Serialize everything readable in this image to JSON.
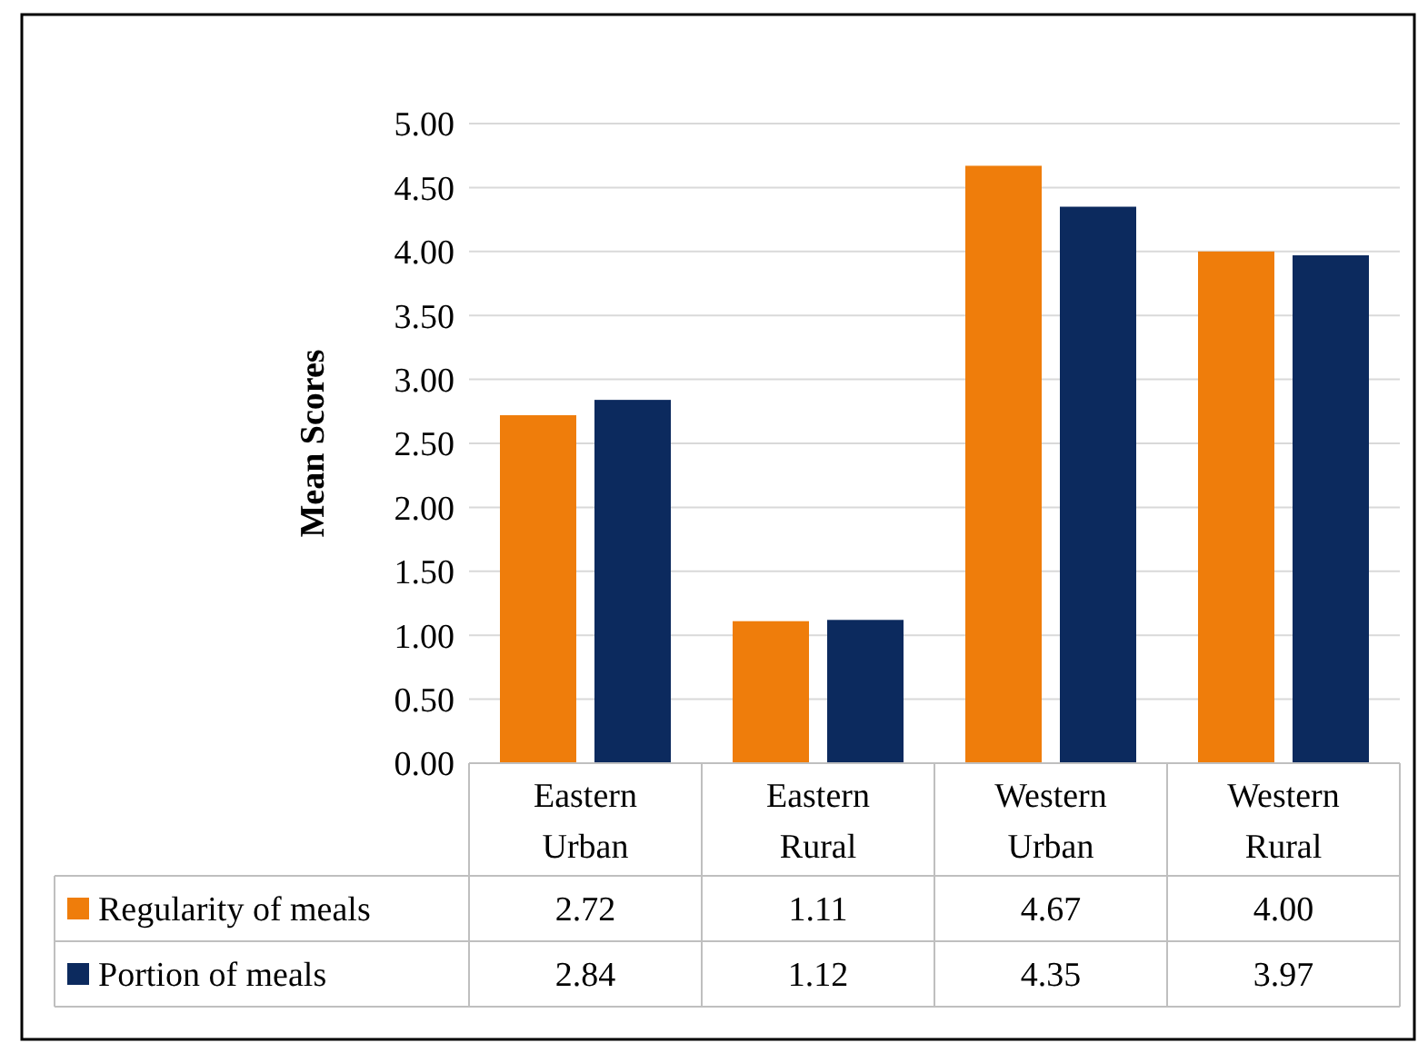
{
  "chart_data": {
    "type": "bar",
    "ylabel": "Mean Scores",
    "categories": [
      "Eastern\nUrban",
      "Eastern\nRural",
      "Western\nUrban",
      "Western\nRural"
    ],
    "series": [
      {
        "name": "Regularity of meals",
        "color": "#ef7d0b",
        "values": [
          2.72,
          1.11,
          4.67,
          4.0
        ],
        "value_labels": [
          "2.72",
          "1.11",
          "4.67",
          "4.00"
        ]
      },
      {
        "name": "Portion of meals",
        "color": "#0c2a5e",
        "values": [
          2.84,
          1.12,
          4.35,
          3.97
        ],
        "value_labels": [
          "2.84",
          "1.12",
          "4.35",
          "3.97"
        ]
      }
    ],
    "ylim": [
      0,
      5
    ],
    "yticks": [
      {
        "value": 0,
        "label": "0.00"
      },
      {
        "value": 0.5,
        "label": "0.50"
      },
      {
        "value": 1,
        "label": "1.00"
      },
      {
        "value": 1.5,
        "label": "1.50"
      },
      {
        "value": 2,
        "label": "2.00"
      },
      {
        "value": 2.5,
        "label": "2.50"
      },
      {
        "value": 3,
        "label": "3.00"
      },
      {
        "value": 3.5,
        "label": "3.50"
      },
      {
        "value": 4,
        "label": "4.00"
      },
      {
        "value": 4.5,
        "label": "4.50"
      },
      {
        "value": 5,
        "label": "5.00"
      }
    ],
    "grid": "y",
    "legend": "bottom"
  }
}
